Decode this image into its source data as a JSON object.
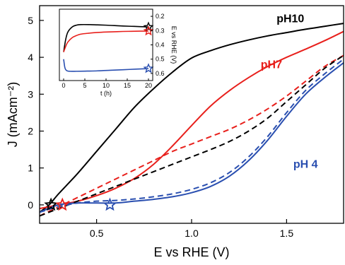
{
  "chart_data": [
    {
      "type": "line",
      "xlabel": "E vs RHE (V)",
      "ylabel": "J (mAcm⁻²)",
      "xlim": [
        0.2,
        1.8
      ],
      "ylim": [
        -0.5,
        5.4
      ],
      "xticks": [
        0.5,
        1.0,
        1.5
      ],
      "xtick_labels": [
        "0.5",
        "1.0",
        "1.5"
      ],
      "yticks": [
        0,
        1,
        2,
        3,
        4,
        5
      ],
      "ytick_labels": [
        "0",
        "1",
        "2",
        "3",
        "4",
        "5"
      ],
      "grid": false,
      "series": [
        {
          "name": "pH10",
          "color": "#000000",
          "dash": false,
          "label_at": [
            1.52,
            4.95
          ],
          "x": [
            0.2,
            0.25,
            0.3,
            0.4,
            0.5,
            0.6,
            0.7,
            0.8,
            0.9,
            1.0,
            1.1,
            1.2,
            1.3,
            1.4,
            1.5,
            1.6,
            1.7,
            1.8
          ],
          "y": [
            -0.2,
            0.0,
            0.3,
            0.85,
            1.45,
            2.05,
            2.65,
            3.15,
            3.6,
            3.98,
            4.18,
            4.34,
            4.47,
            4.58,
            4.67,
            4.76,
            4.84,
            4.92
          ]
        },
        {
          "name": "pH7",
          "color": "#e8201c",
          "dash": false,
          "label_at": [
            1.42,
            3.7
          ],
          "x": [
            0.2,
            0.3,
            0.4,
            0.5,
            0.6,
            0.7,
            0.8,
            0.9,
            1.0,
            1.1,
            1.2,
            1.3,
            1.4,
            1.5,
            1.6,
            1.7,
            1.8
          ],
          "y": [
            -0.1,
            0.0,
            0.1,
            0.25,
            0.45,
            0.72,
            1.1,
            1.6,
            2.15,
            2.68,
            3.1,
            3.45,
            3.75,
            4.0,
            4.22,
            4.45,
            4.7
          ]
        },
        {
          "name": "pH 4",
          "color": "#2a4fb0",
          "dash": false,
          "label_at": [
            1.6,
            1.0
          ],
          "x": [
            0.2,
            0.3,
            0.4,
            0.5,
            0.6,
            0.7,
            0.8,
            0.9,
            1.0,
            1.1,
            1.2,
            1.3,
            1.4,
            1.5,
            1.6,
            1.7,
            1.8
          ],
          "y": [
            -0.2,
            0.0,
            0.05,
            0.05,
            0.05,
            0.1,
            0.15,
            0.22,
            0.33,
            0.5,
            0.78,
            1.2,
            1.75,
            2.4,
            3.0,
            3.45,
            3.85
          ]
        },
        {
          "color": "#e8201c",
          "dash": true,
          "x": [
            0.2,
            0.3,
            0.4,
            0.5,
            0.6,
            0.7,
            0.8,
            0.9,
            1.0,
            1.1,
            1.2,
            1.3,
            1.4,
            1.5,
            1.6,
            1.7,
            1.8
          ],
          "y": [
            -0.3,
            -0.05,
            0.2,
            0.45,
            0.7,
            0.95,
            1.2,
            1.45,
            1.65,
            1.85,
            2.05,
            2.3,
            2.6,
            2.95,
            3.35,
            3.75,
            4.05
          ]
        },
        {
          "color": "#000000",
          "dash": true,
          "x": [
            0.2,
            0.3,
            0.4,
            0.5,
            0.6,
            0.7,
            0.8,
            0.9,
            1.0,
            1.1,
            1.2,
            1.3,
            1.4,
            1.5,
            1.6,
            1.7,
            1.8
          ],
          "y": [
            -0.3,
            -0.1,
            0.1,
            0.3,
            0.5,
            0.7,
            0.9,
            1.1,
            1.3,
            1.5,
            1.72,
            2.0,
            2.35,
            2.8,
            3.25,
            3.7,
            4.05
          ]
        },
        {
          "color": "#2a4fb0",
          "dash": true,
          "x": [
            0.2,
            0.3,
            0.4,
            0.5,
            0.6,
            0.7,
            0.8,
            0.9,
            1.0,
            1.1,
            1.2,
            1.3,
            1.4,
            1.5,
            1.6,
            1.7,
            1.8
          ],
          "y": [
            -0.2,
            -0.05,
            0.05,
            0.1,
            0.12,
            0.16,
            0.22,
            0.3,
            0.42,
            0.6,
            0.88,
            1.3,
            1.85,
            2.5,
            3.1,
            3.55,
            3.95
          ]
        }
      ],
      "markers": [
        {
          "x": 0.26,
          "y": 0.0,
          "color": "#000000",
          "shape": "star"
        },
        {
          "x": 0.32,
          "y": 0.0,
          "color": "#e8201c",
          "shape": "star"
        },
        {
          "x": 0.57,
          "y": 0.0,
          "color": "#2a4fb0",
          "shape": "star"
        }
      ]
    },
    {
      "type": "line",
      "inset": true,
      "xlabel": "t (h)",
      "ylabel": "E vs RHE (V)",
      "xlim": [
        -1,
        21
      ],
      "ylim": [
        0.15,
        0.65
      ],
      "ylim_inverted": true,
      "xticks": [
        0,
        5,
        10,
        15,
        20
      ],
      "xtick_labels": [
        "0",
        "5",
        "10",
        "15",
        "20"
      ],
      "yticks": [
        0.2,
        0.3,
        0.4,
        0.5,
        0.6
      ],
      "ytick_labels": [
        "0.2",
        "0.3",
        "0.4",
        "0.5",
        "0.6"
      ],
      "series": [
        {
          "color": "#000000",
          "x": [
            0,
            0.5,
            1,
            2,
            3,
            4,
            6,
            8,
            10,
            12,
            14,
            16,
            18,
            20
          ],
          "y": [
            0.45,
            0.36,
            0.31,
            0.275,
            0.262,
            0.258,
            0.258,
            0.26,
            0.262,
            0.265,
            0.268,
            0.27,
            0.272,
            0.275
          ]
        },
        {
          "color": "#e8201c",
          "x": [
            0,
            0.5,
            1,
            2,
            3,
            4,
            6,
            8,
            10,
            12,
            14,
            16,
            18,
            20
          ],
          "y": [
            0.45,
            0.41,
            0.38,
            0.35,
            0.335,
            0.325,
            0.318,
            0.313,
            0.31,
            0.308,
            0.306,
            0.305,
            0.304,
            0.303
          ]
        },
        {
          "color": "#2a4fb0",
          "x": [
            0,
            0.3,
            0.7,
            1.5,
            3,
            5,
            8,
            11,
            14,
            17,
            20
          ],
          "y": [
            0.5,
            0.56,
            0.58,
            0.585,
            0.585,
            0.584,
            0.582,
            0.578,
            0.574,
            0.57,
            0.566
          ]
        }
      ],
      "markers": [
        {
          "x": 20,
          "y": 0.275,
          "color": "#000000",
          "shape": "star"
        },
        {
          "x": 20,
          "y": 0.303,
          "color": "#e8201c",
          "shape": "star"
        },
        {
          "x": 20,
          "y": 0.566,
          "color": "#2a4fb0",
          "shape": "star"
        }
      ]
    }
  ]
}
